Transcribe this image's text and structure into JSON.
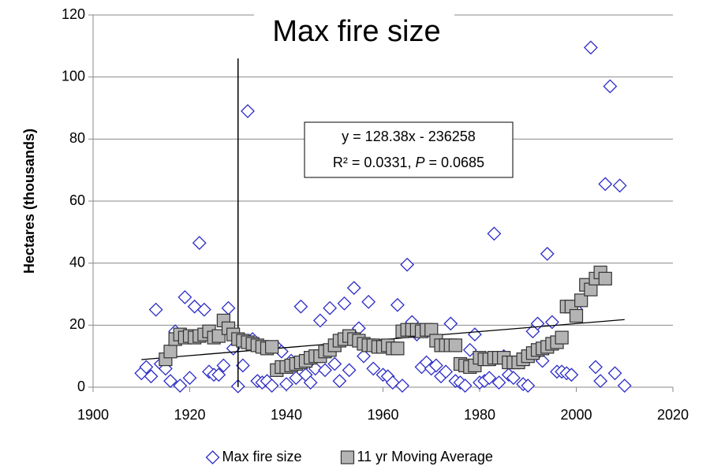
{
  "chart_data": {
    "type": "scatter",
    "title": "Max fire size",
    "ylabel": "Hectares (thousands)",
    "xlim": [
      1900,
      2020
    ],
    "xticks": [
      1900,
      1920,
      1940,
      1960,
      1980,
      2000,
      2020
    ],
    "ylim": [
      0,
      120
    ],
    "yticks": [
      0,
      20,
      40,
      60,
      80,
      100,
      120
    ],
    "grid": true,
    "legend": "bottom",
    "series": [
      {
        "name": "Max fire size",
        "marker": "diamond",
        "color": "#2b2bc8",
        "x": [
          1910,
          1911,
          1912,
          1913,
          1914,
          1915,
          1916,
          1917,
          1918,
          1919,
          1920,
          1921,
          1922,
          1923,
          1924,
          1925,
          1926,
          1927,
          1928,
          1929,
          1930,
          1931,
          1932,
          1933,
          1934,
          1935,
          1936,
          1937,
          1938,
          1939,
          1940,
          1941,
          1942,
          1943,
          1944,
          1945,
          1946,
          1947,
          1948,
          1949,
          1950,
          1951,
          1952,
          1953,
          1954,
          1955,
          1956,
          1957,
          1958,
          1959,
          1960,
          1961,
          1962,
          1963,
          1964,
          1965,
          1966,
          1967,
          1968,
          1969,
          1970,
          1971,
          1972,
          1973,
          1974,
          1975,
          1976,
          1977,
          1978,
          1979,
          1980,
          1981,
          1982,
          1983,
          1984,
          1985,
          1986,
          1987,
          1988,
          1989,
          1990,
          1991,
          1992,
          1993,
          1994,
          1995,
          1996,
          1997,
          1998,
          1999,
          2000,
          2003,
          2004,
          2005,
          2006,
          2007,
          2008,
          2009,
          2010
        ],
        "values": [
          4.5,
          6.5,
          3.5,
          25,
          7.5,
          6,
          2,
          18,
          0.5,
          29,
          3,
          26,
          46.5,
          25,
          5,
          4,
          4,
          7,
          25.5,
          12.5,
          0.3,
          7,
          89,
          15.5,
          2,
          1.5,
          2,
          0.5,
          13,
          11.5,
          1,
          8.5,
          3,
          26,
          4,
          1.5,
          6,
          21.5,
          5.5,
          25.5,
          7.5,
          2,
          27,
          5.5,
          32,
          19,
          10,
          27.5,
          6,
          13,
          4,
          3.5,
          1.5,
          26.5,
          0.5,
          39.5,
          21,
          17,
          6.5,
          8,
          6,
          7,
          3.5,
          5,
          20.5,
          2,
          1.5,
          0.5,
          12,
          17,
          1.5,
          2,
          3,
          49.5,
          1.5,
          10,
          4,
          3,
          8,
          1,
          0.5,
          18,
          20.5,
          8.5,
          43,
          21,
          5,
          5,
          4.5,
          4,
          25,
          109.5,
          6.5,
          2,
          65.5,
          97,
          4.5,
          65,
          0.5
        ]
      },
      {
        "name": "11 yr Moving Average",
        "marker": "square",
        "color": "#b4b4b4",
        "x": [
          1915,
          1916,
          1917,
          1918,
          1919,
          1920,
          1921,
          1922,
          1923,
          1924,
          1925,
          1926,
          1927,
          1928,
          1929,
          1930,
          1931,
          1932,
          1933,
          1934,
          1935,
          1936,
          1937,
          1938,
          1939,
          1940,
          1941,
          1942,
          1943,
          1944,
          1945,
          1946,
          1947,
          1948,
          1949,
          1950,
          1951,
          1952,
          1953,
          1954,
          1955,
          1956,
          1957,
          1958,
          1959,
          1960,
          1961,
          1962,
          1963,
          1964,
          1965,
          1966,
          1967,
          1968,
          1969,
          1970,
          1971,
          1972,
          1973,
          1974,
          1975,
          1976,
          1977,
          1978,
          1979,
          1980,
          1981,
          1982,
          1983,
          1984,
          1985,
          1986,
          1987,
          1988,
          1989,
          1990,
          1991,
          1992,
          1993,
          1994,
          1995,
          1996,
          1997,
          1998,
          1999,
          2000,
          2001,
          2002,
          2003,
          2004,
          2005,
          2006
        ],
        "values": [
          9,
          11.5,
          15.5,
          17,
          16,
          16.5,
          16,
          16.5,
          17,
          18,
          16,
          16.5,
          21.5,
          19,
          17,
          15.5,
          15,
          14.5,
          14,
          13.5,
          13,
          12.5,
          13,
          5.5,
          6.5,
          6.5,
          7,
          7.5,
          8,
          8.5,
          9.5,
          10,
          10,
          11.5,
          12,
          13.5,
          15,
          15.5,
          16.5,
          15.5,
          15,
          14,
          13.5,
          13.5,
          13,
          13,
          13.5,
          12.5,
          12.5,
          18,
          18.5,
          18.5,
          18.5,
          18,
          18.5,
          18.5,
          15,
          13.5,
          13.5,
          13.5,
          13.5,
          7.5,
          7,
          6.5,
          7,
          9.5,
          9,
          9,
          9.5,
          9.5,
          9.5,
          8,
          8,
          8,
          9,
          10,
          11,
          12,
          12.5,
          13,
          14,
          14.5,
          16,
          26,
          26,
          23,
          28,
          33,
          31.5,
          35,
          37,
          35
        ]
      }
    ],
    "trendline": {
      "x": [
        1910,
        2010
      ],
      "values": [
        8.9,
        21.8
      ]
    },
    "vline": {
      "x": 1930,
      "ymax": 106
    },
    "annotation": {
      "line1": "y = 128.38x - 236258",
      "line2": [
        "R² = 0.0331, ",
        "P",
        " = 0.0685"
      ]
    }
  }
}
